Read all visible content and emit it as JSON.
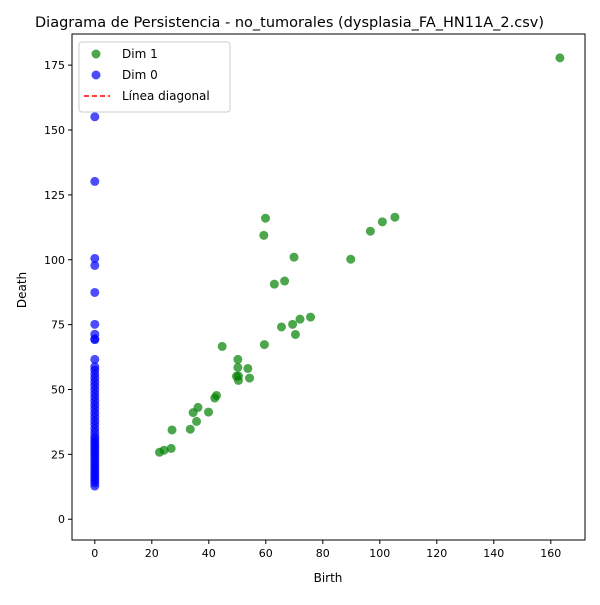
{
  "chart_data": {
    "type": "scatter",
    "title": "Diagrama de Persistencia - no_tumorales (dysplasia_FA_HN11A_2.csv)",
    "xlabel": "Birth",
    "ylabel": "Death",
    "xlim": [
      -8,
      172
    ],
    "ylim": [
      -8,
      187
    ],
    "xticks": [
      "0",
      "20",
      "40",
      "60",
      "80",
      "100",
      "120",
      "140",
      "160"
    ],
    "yticks": [
      "0",
      "25",
      "50",
      "75",
      "100",
      "125",
      "150",
      "175"
    ],
    "grid": false,
    "legend_position": "top-left",
    "series": [
      {
        "name": "Dim 1",
        "color": "#008000",
        "points": [
          [
            22.7,
            25.8
          ],
          [
            24.3,
            26.6
          ],
          [
            26.8,
            27.3
          ],
          [
            27.1,
            34.4
          ],
          [
            33.5,
            34.7
          ],
          [
            34.5,
            41.1
          ],
          [
            36.2,
            43.1
          ],
          [
            35.7,
            37.7
          ],
          [
            39.9,
            41.3
          ],
          [
            42.1,
            46.7
          ],
          [
            42.7,
            47.7
          ],
          [
            44.7,
            66.6
          ],
          [
            49.7,
            55.1
          ],
          [
            50.2,
            58.5
          ],
          [
            50.2,
            61.6
          ],
          [
            50.4,
            53.5
          ],
          [
            50.4,
            55.2
          ],
          [
            53.7,
            58.1
          ],
          [
            54.3,
            54.4
          ],
          [
            59.5,
            67.3
          ],
          [
            59.3,
            109.4
          ],
          [
            59.9,
            116.0
          ],
          [
            63.0,
            90.6
          ],
          [
            65.5,
            74.1
          ],
          [
            66.6,
            91.8
          ],
          [
            69.4,
            75.1
          ],
          [
            69.9,
            101.0
          ],
          [
            70.4,
            71.2
          ],
          [
            72.0,
            77.1
          ],
          [
            75.7,
            77.9
          ],
          [
            89.8,
            100.2
          ],
          [
            96.7,
            111.0
          ],
          [
            100.9,
            114.6
          ],
          [
            105.3,
            116.4
          ],
          [
            163.2,
            177.8
          ]
        ]
      },
      {
        "name": "Dim 0",
        "color": "#0000ff",
        "x": 0,
        "death": [
          12.8,
          14.0,
          15.0,
          16.0,
          17.0,
          18.0,
          19.0,
          20.0,
          21.0,
          22.0,
          23.0,
          24.0,
          25.0,
          26.0,
          27.0,
          28.0,
          29.0,
          30.0,
          31.0,
          32.0,
          33.5,
          35.0,
          36.5,
          38.0,
          39.5,
          41.0,
          42.5,
          44.0,
          45.5,
          47.0,
          48.5,
          50.0,
          51.5,
          53.0,
          54.5,
          56.0,
          57.5,
          58.8,
          61.6,
          69.2,
          69.5,
          71.3,
          75.1,
          87.4,
          97.8,
          100.5,
          130.2,
          155.1
        ]
      },
      {
        "name": "Línea diagonal",
        "color": "#ff0000",
        "style": "dashed",
        "points": []
      }
    ]
  }
}
